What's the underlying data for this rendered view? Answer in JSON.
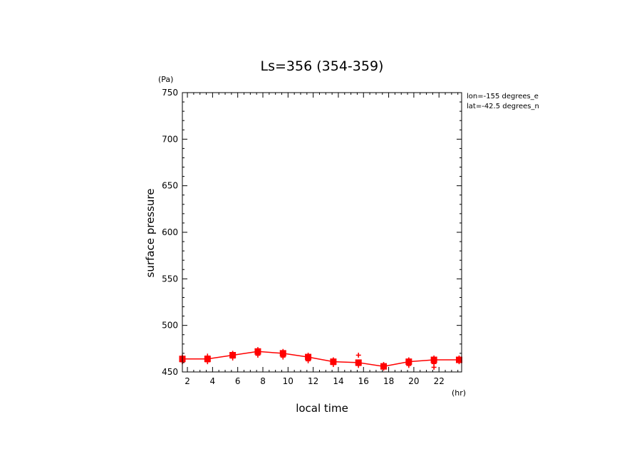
{
  "chart_data": {
    "type": "line",
    "title": "Ls=356 (354-359)",
    "xlabel": "local time",
    "ylabel": "surface pressure",
    "x_unit": "(hr)",
    "y_unit": "(Pa)",
    "xlim": [
      1.6,
      23.8
    ],
    "ylim": [
      450,
      750
    ],
    "x_ticks": [
      2,
      4,
      6,
      8,
      10,
      12,
      14,
      16,
      18,
      20,
      22
    ],
    "y_ticks": [
      450,
      500,
      550,
      600,
      650,
      700,
      750
    ],
    "annotations": [
      "lon=-155 degrees_e",
      "lat=-42.5 degrees_n"
    ],
    "colors": {
      "series": "#ff0000",
      "axes": "#000000"
    },
    "series": [
      {
        "x": [
          1.6,
          3.6,
          5.6,
          7.6,
          9.6,
          11.6,
          13.6,
          15.6,
          17.6,
          19.6,
          21.6,
          23.6
        ],
        "values": [
          464,
          464,
          468,
          472,
          470,
          466,
          461,
          460,
          456,
          461,
          463,
          463
        ]
      }
    ],
    "scatter_points": [
      {
        "x": 1.6,
        "y": 461
      },
      {
        "x": 1.6,
        "y": 466
      },
      {
        "x": 3.6,
        "y": 461
      },
      {
        "x": 3.6,
        "y": 467
      },
      {
        "x": 5.6,
        "y": 465
      },
      {
        "x": 5.6,
        "y": 470
      },
      {
        "x": 7.6,
        "y": 468
      },
      {
        "x": 7.6,
        "y": 474
      },
      {
        "x": 9.6,
        "y": 466
      },
      {
        "x": 9.6,
        "y": 472
      },
      {
        "x": 11.6,
        "y": 462
      },
      {
        "x": 11.6,
        "y": 468
      },
      {
        "x": 13.6,
        "y": 458
      },
      {
        "x": 13.6,
        "y": 463
      },
      {
        "x": 15.6,
        "y": 457
      },
      {
        "x": 15.6,
        "y": 468
      },
      {
        "x": 17.6,
        "y": 454
      },
      {
        "x": 17.6,
        "y": 458
      },
      {
        "x": 19.6,
        "y": 457
      },
      {
        "x": 19.6,
        "y": 463
      },
      {
        "x": 21.6,
        "y": 455
      },
      {
        "x": 21.6,
        "y": 459
      },
      {
        "x": 21.6,
        "y": 465
      },
      {
        "x": 23.6,
        "y": 461
      },
      {
        "x": 23.6,
        "y": 465
      }
    ]
  }
}
